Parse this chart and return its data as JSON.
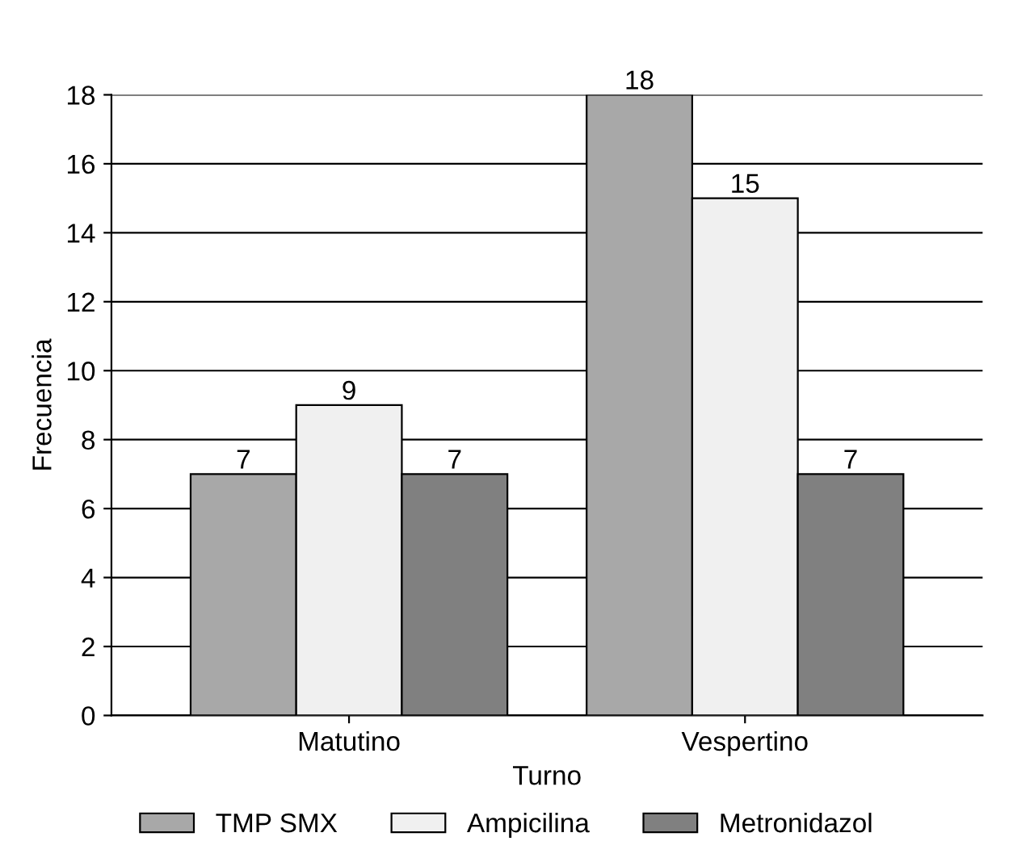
{
  "chart_data": {
    "type": "bar",
    "xlabel": "Turno",
    "ylabel": "Frecuencia",
    "categories": [
      "Matutino",
      "Vespertino"
    ],
    "series": [
      {
        "name": "TMP SMX",
        "color": "#a8a8a8",
        "values": [
          7,
          18
        ]
      },
      {
        "name": "Ampicilina",
        "color": "#f0f0f0",
        "values": [
          9,
          15
        ]
      },
      {
        "name": "Metronidazol",
        "color": "#808080",
        "values": [
          7,
          7
        ]
      }
    ],
    "ylim": [
      0,
      18
    ],
    "yticks": [
      0,
      2,
      4,
      6,
      8,
      10,
      12,
      14,
      16,
      18
    ],
    "grid": "y",
    "legend": "bottom",
    "data_labels": true
  }
}
